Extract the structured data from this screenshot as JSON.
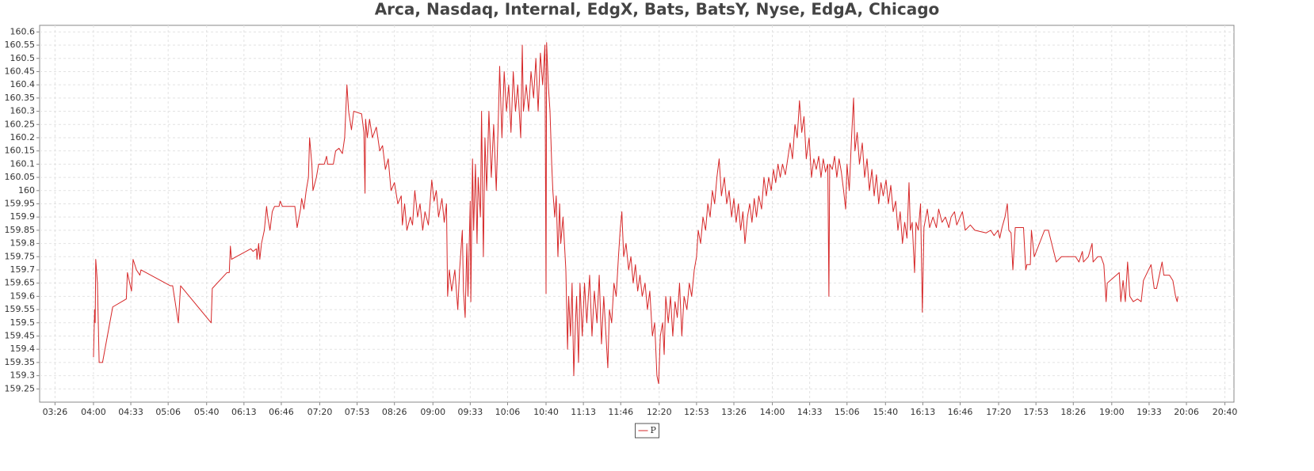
{
  "chart_data": {
    "type": "line",
    "title": "Arca, Nasdaq, Internal, EdgX, Bats, BatsY, Nyse, EdgA, Chicago",
    "x": [
      240,
      241,
      241.5,
      242,
      243.5,
      245,
      248,
      257,
      269,
      270,
      273.6,
      275,
      278,
      281,
      282,
      308,
      310,
      315,
      317,
      344,
      345,
      358,
      360,
      361,
      362,
      379,
      381,
      384,
      384.5,
      386,
      387,
      388.5,
      391,
      393,
      394,
      396,
      398,
      400,
      404,
      405,
      407,
      418,
      420,
      423,
      424,
      426,
      428,
      430,
      431,
      433,
      434,
      437,
      439,
      444,
      446,
      447,
      452,
      454,
      457,
      460,
      462,
      463,
      464,
      465.5,
      468,
      470,
      477,
      479,
      480,
      480.5,
      482,
      484,
      486.5,
      490,
      493,
      495.5,
      498,
      500.5,
      503,
      506,
      509,
      512,
      513,
      515,
      517,
      520,
      522,
      524,
      526.5,
      528.6,
      531,
      533,
      536,
      539,
      541,
      543,
      545,
      548,
      550,
      552,
      553,
      554.5,
      556.6,
      559.4,
      562,
      563.6,
      566,
      567,
      568.5,
      570,
      571,
      573,
      573.5,
      575,
      576,
      577.6,
      579,
      580,
      582,
      583,
      584.6,
      586,
      587.5,
      589.5,
      591.6,
      593.7,
      596,
      598,
      599,
      601,
      603,
      605,
      607,
      609,
      611,
      613,
      615,
      617.6,
      619,
      620,
      622.5,
      624.6,
      626.7,
      629,
      631,
      633,
      635,
      637,
      639,
      640,
      640.5,
      642,
      643.5,
      645,
      646,
      647.7,
      649,
      650.5,
      652,
      653,
      655,
      657.5,
      659,
      660,
      661.6,
      663,
      664.5,
      666,
      667,
      668.7,
      670,
      672,
      674,
      676,
      678.5,
      680.6,
      682.7,
      685,
      687,
      689,
      691,
      693,
      694.6,
      696,
      698,
      700,
      702,
      704,
      705.5,
      707,
      708.6,
      710.7,
      713,
      715,
      717,
      719,
      721,
      723,
      725,
      727.5,
      729.6,
      731.7,
      734,
      736,
      738,
      739.5,
      741,
      743,
      744.4,
      745.8,
      748,
      750,
      752,
      754,
      756,
      758,
      760,
      762,
      764.5,
      766.6,
      768.7,
      771,
      773,
      774.5,
      776.6,
      778.7,
      781,
      783,
      785,
      787,
      789,
      791,
      793,
      795,
      797.6,
      799.7,
      801.8,
      804,
      806,
      808,
      810,
      812,
      814,
      815.8,
      818,
      820,
      822,
      824,
      826,
      828,
      830.5,
      832.6,
      834.7,
      836.8,
      839,
      841,
      843,
      845,
      847,
      849,
      851.5,
      853.6,
      855.7,
      857.8,
      860,
      862,
      864,
      866,
      868,
      870,
      872.5,
      874.6,
      876.7,
      878.8,
      881,
      883,
      885,
      887,
      889,
      890,
      890.7,
      893,
      895,
      897,
      899,
      901,
      903,
      904.8,
      906,
      908,
      910,
      911.8,
      913,
      915,
      917,
      919.5,
      921.6,
      923.7,
      925.8,
      928,
      930,
      932,
      934,
      936,
      938,
      940.5,
      942.6,
      944.7,
      946.8,
      949,
      951,
      953,
      955,
      957,
      959,
      960.8,
      962,
      963.6,
      965.7,
      967,
      969,
      971,
      972.6,
      974,
      977,
      979,
      982,
      985,
      987,
      990,
      993,
      996,
      998,
      1001,
      1003,
      1008,
      1010.5,
      1015,
      1019,
      1029,
      1033,
      1036,
      1039.5,
      1041,
      1043,
      1045.6,
      1047.7,
      1049,
      1051,
      1052.6,
      1054.7,
      1057.5,
      1062,
      1064,
      1065,
      1068,
      1069,
      1071.5,
      1080.6,
      1084,
      1091,
      1095.5,
      1108,
      1111,
      1114,
      1115,
      1119.3,
      1122.6,
      1123.5,
      1127.6,
      1130.5,
      1133,
      1135,
      1136,
      1146.6,
      1148,
      1150,
      1152,
      1154,
      1156,
      1159,
      1162.8,
      1166,
      1168,
      1174.7,
      1177.5,
      1179.6,
      1184.5,
      1186,
      1191,
      1194,
      1196.4,
      1197.8,
      1198.5
    ],
    "series": [
      {
        "name": "P",
        "color": "#d62728",
        "values": [
          159.37,
          159.55,
          159.5,
          159.74,
          159.65,
          159.35,
          159.35,
          159.56,
          159.59,
          159.69,
          159.62,
          159.74,
          159.7,
          159.68,
          159.7,
          159.64,
          159.64,
          159.5,
          159.64,
          159.5,
          159.63,
          159.69,
          159.69,
          159.79,
          159.74,
          159.78,
          159.77,
          159.78,
          159.74,
          159.8,
          159.74,
          159.8,
          159.85,
          159.94,
          159.9,
          159.85,
          159.92,
          159.94,
          159.94,
          159.96,
          159.94,
          159.94,
          159.86,
          159.93,
          159.97,
          159.93,
          160.0,
          160.05,
          160.2,
          160.1,
          160.0,
          160.05,
          160.1,
          160.1,
          160.13,
          160.1,
          160.1,
          160.15,
          160.16,
          160.14,
          160.2,
          160.3,
          160.4,
          160.3,
          160.23,
          160.3,
          160.29,
          160.22,
          159.99,
          160.27,
          160.2,
          160.27,
          160.2,
          160.24,
          160.15,
          160.17,
          160.08,
          160.12,
          160.0,
          160.03,
          159.95,
          159.98,
          159.87,
          159.95,
          159.85,
          159.9,
          159.87,
          160.0,
          159.9,
          159.95,
          159.85,
          159.92,
          159.87,
          160.04,
          159.96,
          160.0,
          159.9,
          159.97,
          159.88,
          159.95,
          159.6,
          159.7,
          159.62,
          159.7,
          159.55,
          159.7,
          159.85,
          159.62,
          159.52,
          159.8,
          159.6,
          159.96,
          159.58,
          160.12,
          159.85,
          160.1,
          159.8,
          160.05,
          159.9,
          160.3,
          159.75,
          160.2,
          160.0,
          160.3,
          160.05,
          160.25,
          160.0,
          160.3,
          160.47,
          160.2,
          160.45,
          160.3,
          160.4,
          160.22,
          160.45,
          160.3,
          160.4,
          160.2,
          160.55,
          160.3,
          160.4,
          160.3,
          160.45,
          160.35,
          160.5,
          160.3,
          160.52,
          160.4,
          160.55,
          159.61,
          160.56,
          160.4,
          160.3,
          160.1,
          160.0,
          159.9,
          159.98,
          159.75,
          159.95,
          159.8,
          159.9,
          159.7,
          159.4,
          159.6,
          159.45,
          159.65,
          159.3,
          159.5,
          159.6,
          159.35,
          159.65,
          159.45,
          159.65,
          159.5,
          159.68,
          159.45,
          159.62,
          159.5,
          159.68,
          159.42,
          159.6,
          159.45,
          159.33,
          159.55,
          159.5,
          159.65,
          159.6,
          159.75,
          159.85,
          159.92,
          159.75,
          159.8,
          159.7,
          159.75,
          159.65,
          159.72,
          159.62,
          159.68,
          159.6,
          159.65,
          159.55,
          159.62,
          159.45,
          159.5,
          159.3,
          159.27,
          159.45,
          159.5,
          159.38,
          159.6,
          159.5,
          159.6,
          159.45,
          159.58,
          159.52,
          159.65,
          159.45,
          159.6,
          159.55,
          159.65,
          159.6,
          159.7,
          159.75,
          159.85,
          159.8,
          159.9,
          159.85,
          159.95,
          159.9,
          160.0,
          159.95,
          160.05,
          160.12,
          159.98,
          160.05,
          159.95,
          160.0,
          159.9,
          159.97,
          159.88,
          159.95,
          159.85,
          159.92,
          159.8,
          159.9,
          159.95,
          159.88,
          159.97,
          159.9,
          159.98,
          159.93,
          160.05,
          159.98,
          160.05,
          160.0,
          160.08,
          160.03,
          160.1,
          160.05,
          160.1,
          160.06,
          160.12,
          160.18,
          160.12,
          160.25,
          160.2,
          160.34,
          160.22,
          160.28,
          160.12,
          160.2,
          160.05,
          160.12,
          160.08,
          160.13,
          160.05,
          160.12,
          160.07,
          160.1,
          159.6,
          160.1,
          160.08,
          160.13,
          160.05,
          160.12,
          160.07,
          160.0,
          159.93,
          160.1,
          160.0,
          160.2,
          160.35,
          160.15,
          160.22,
          160.1,
          160.18,
          160.05,
          160.12,
          160.0,
          160.08,
          159.98,
          160.06,
          159.95,
          160.03,
          159.98,
          160.04,
          159.95,
          160.02,
          159.92,
          159.96,
          159.85,
          159.92,
          159.8,
          159.88,
          159.82,
          160.03,
          159.85,
          159.88,
          159.69,
          159.88,
          159.85,
          159.95,
          159.54,
          159.86,
          159.93,
          159.86,
          159.9,
          159.86,
          159.93,
          159.88,
          159.9,
          159.86,
          159.9,
          159.92,
          159.87,
          159.92,
          159.85,
          159.87,
          159.85,
          159.84,
          159.85,
          159.83,
          159.85,
          159.82,
          159.86,
          159.9,
          159.95,
          159.85,
          159.84,
          159.7,
          159.86,
          159.86,
          159.86,
          159.7,
          159.72,
          159.72,
          159.85,
          159.75,
          159.85,
          159.85,
          159.73,
          159.75,
          159.75,
          159.73,
          159.77,
          159.73,
          159.75,
          159.8,
          159.73,
          159.75,
          159.75,
          159.72,
          159.58,
          159.65,
          159.69,
          159.58,
          159.66,
          159.58,
          159.73,
          159.6,
          159.58,
          159.59,
          159.58,
          159.66,
          159.72,
          159.63,
          159.63,
          159.73,
          159.68,
          159.68,
          159.66,
          159.6,
          159.58,
          159.6
        ]
      }
    ],
    "xlim": [
      192.4,
      1248
    ],
    "xticks": [
      {
        "value": 206,
        "label": "03:26"
      },
      {
        "value": 240,
        "label": "04:00"
      },
      {
        "value": 273,
        "label": "04:33"
      },
      {
        "value": 306,
        "label": "05:06"
      },
      {
        "value": 340,
        "label": "05:40"
      },
      {
        "value": 373,
        "label": "06:13"
      },
      {
        "value": 406,
        "label": "06:46"
      },
      {
        "value": 440,
        "label": "07:20"
      },
      {
        "value": 473,
        "label": "07:53"
      },
      {
        "value": 506,
        "label": "08:26"
      },
      {
        "value": 540,
        "label": "09:00"
      },
      {
        "value": 573,
        "label": "09:33"
      },
      {
        "value": 606,
        "label": "10:06"
      },
      {
        "value": 640,
        "label": "10:40"
      },
      {
        "value": 673,
        "label": "11:13"
      },
      {
        "value": 706,
        "label": "11:46"
      },
      {
        "value": 740,
        "label": "12:20"
      },
      {
        "value": 773,
        "label": "12:53"
      },
      {
        "value": 806,
        "label": "13:26"
      },
      {
        "value": 840,
        "label": "14:00"
      },
      {
        "value": 873,
        "label": "14:33"
      },
      {
        "value": 906,
        "label": "15:06"
      },
      {
        "value": 940,
        "label": "15:40"
      },
      {
        "value": 973,
        "label": "16:13"
      },
      {
        "value": 1006,
        "label": "16:46"
      },
      {
        "value": 1040,
        "label": "17:20"
      },
      {
        "value": 1073,
        "label": "17:53"
      },
      {
        "value": 1106,
        "label": "18:26"
      },
      {
        "value": 1140,
        "label": "19:00"
      },
      {
        "value": 1173,
        "label": "19:33"
      },
      {
        "value": 1206,
        "label": "20:06"
      },
      {
        "value": 1240,
        "label": "20:40"
      }
    ],
    "ylim": [
      159.2,
      160.625
    ],
    "yticks": [
      159.25,
      159.3,
      159.35,
      159.4,
      159.45,
      159.5,
      159.55,
      159.6,
      159.65,
      159.7,
      159.75,
      159.8,
      159.85,
      159.9,
      159.95,
      160,
      160.05,
      160.1,
      160.15,
      160.2,
      160.25,
      160.3,
      160.35,
      160.4,
      160.45,
      160.5,
      160.55,
      160.6
    ],
    "grid": true,
    "legend": "bottom"
  }
}
